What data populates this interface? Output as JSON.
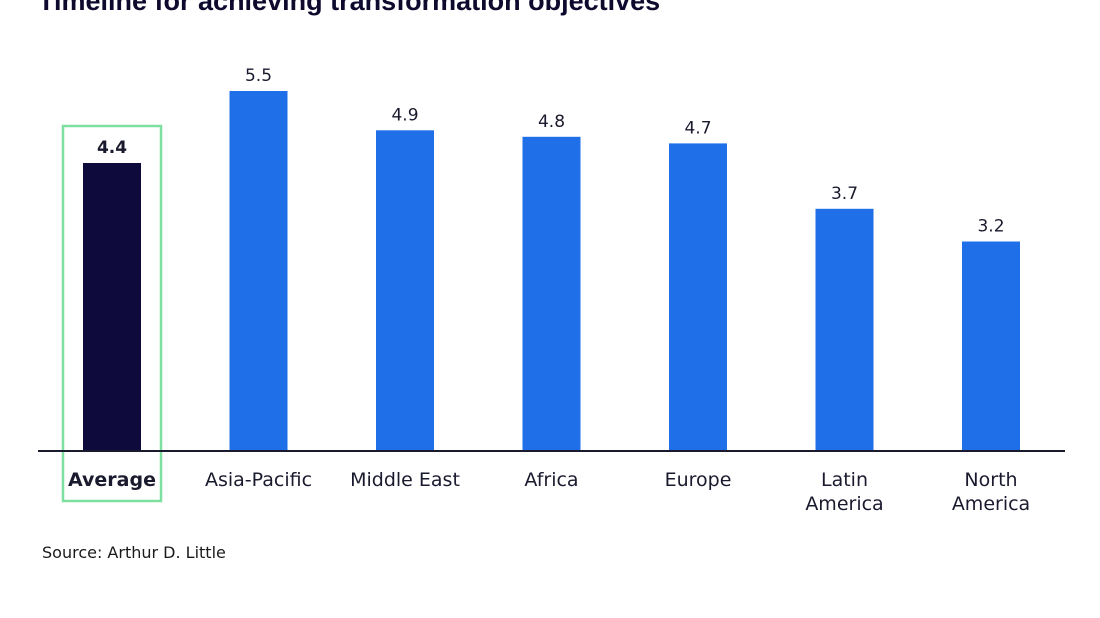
{
  "title": "Timeline for achieving transformation objectives",
  "source": "Source: Arthur D. Little",
  "chart_data": {
    "type": "bar",
    "title": "Timeline for achieving transformation objectives",
    "categories": [
      [
        "Average"
      ],
      [
        "Asia-Pacific"
      ],
      [
        "Middle East"
      ],
      [
        "Africa"
      ],
      [
        "Europe"
      ],
      [
        "Latin",
        "America"
      ],
      [
        "North",
        "America"
      ]
    ],
    "values": [
      4.4,
      5.5,
      4.9,
      4.8,
      4.7,
      3.7,
      3.2
    ],
    "highlight_index": 0,
    "value_labels": [
      "4.4",
      "5.5",
      "4.9",
      "4.8",
      "4.7",
      "3.7",
      "3.2"
    ],
    "xlabel": "",
    "ylabel": "",
    "ylim": [
      0,
      5.5
    ],
    "grid": false,
    "colors": {
      "bar": "#1f6fe8",
      "highlight_bar": "#0f0a3c",
      "highlight_box": "#7ee0a0",
      "axis": "#1a1a2e",
      "label": "#1a1a2e"
    }
  }
}
